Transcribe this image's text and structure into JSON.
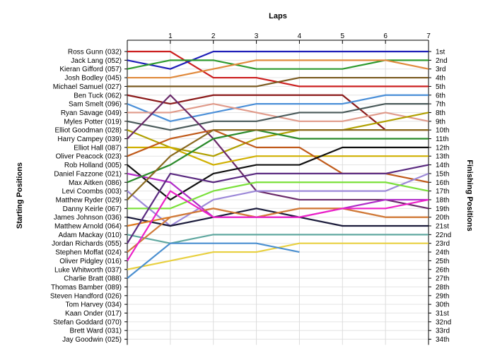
{
  "chart_data": {
    "type": "line",
    "title": "",
    "xlabel": "Laps",
    "ylabel_left": "Starting Positions",
    "ylabel_right": "Finishing Positions",
    "laps": [
      1,
      2,
      3,
      4,
      5,
      6,
      7
    ],
    "xlim": [
      0,
      7
    ],
    "ylim": [
      1,
      34
    ],
    "grid": true,
    "finishing_labels": [
      "1st",
      "2nd",
      "3rd",
      "4th",
      "5th",
      "6th",
      "7th",
      "8th",
      "9th",
      "10th",
      "11th",
      "12th",
      "13th",
      "14th",
      "15th",
      "16th",
      "17th",
      "18th",
      "19th",
      "20th",
      "21st",
      "22nd",
      "23rd",
      "24th",
      "25th",
      "26th",
      "27th",
      "28th",
      "29th",
      "30th",
      "31st",
      "32nd",
      "33rd",
      "34th"
    ],
    "series": [
      {
        "name": "Ross Gunn (032)",
        "color": "#cc1f1f",
        "positions": [
          1,
          1,
          4,
          4,
          5,
          5,
          5,
          5
        ]
      },
      {
        "name": "Jack Lang (052)",
        "color": "#1f1fb8",
        "positions": [
          2,
          3,
          1,
          1,
          1,
          1,
          1,
          1
        ]
      },
      {
        "name": "Kieran Gifford (057)",
        "color": "#2e9a2e",
        "positions": [
          3,
          2,
          2,
          3,
          3,
          3,
          2,
          2
        ]
      },
      {
        "name": "Josh Bodley (045)",
        "color": "#e08a3c",
        "positions": [
          4,
          4,
          3,
          2,
          2,
          2,
          2,
          3
        ]
      },
      {
        "name": "Michael Samuel (027)",
        "color": "#7a5a20",
        "positions": [
          5,
          5,
          5,
          5,
          4,
          4,
          4,
          4
        ]
      },
      {
        "name": "Ben Tuck (062)",
        "color": "#8b1a1a",
        "positions": [
          6,
          7,
          6,
          6,
          6,
          6,
          10,
          10
        ]
      },
      {
        "name": "Sam Smelt (096)",
        "color": "#4a8fd8",
        "positions": [
          7,
          9,
          8,
          7,
          7,
          7,
          6,
          6
        ]
      },
      {
        "name": "Ryan Savage (049)",
        "color": "#e09a8a",
        "positions": [
          8,
          8,
          7,
          8,
          9,
          9,
          8,
          9
        ]
      },
      {
        "name": "Myles Potter (019)",
        "color": "#4a5a5a",
        "positions": [
          9,
          10,
          9,
          9,
          8,
          8,
          7,
          7
        ]
      },
      {
        "name": "Elliot Goodman (028)",
        "color": "#b0a000",
        "positions": [
          10,
          12,
          13,
          11,
          10,
          10,
          9,
          8
        ]
      },
      {
        "name": "Harry Campey (039)",
        "color": "#6a2a6a",
        "positions": [
          11,
          6,
          11,
          17,
          18,
          18,
          18,
          19
        ]
      },
      {
        "name": "Elliot Hall (087)",
        "color": "#d0b000",
        "positions": [
          12,
          12,
          14,
          13,
          13,
          13,
          13,
          13
        ]
      },
      {
        "name": "Oliver Peacock (023)",
        "color": "#c05a1a",
        "positions": [
          13,
          11,
          10,
          12,
          12,
          15,
          15,
          16
        ]
      },
      {
        "name": "Rob Holland (005)",
        "color": "#101010",
        "positions": [
          14,
          18,
          15,
          14,
          14,
          12,
          12,
          12
        ]
      },
      {
        "name": "Daniel Fazzone (021)",
        "color": "#b02ac8",
        "positions": [
          15,
          16,
          20,
          20,
          20,
          19,
          18,
          18
        ]
      },
      {
        "name": "Max Aitken (086)",
        "color": "#2a8a2a",
        "positions": [
          16,
          14,
          11,
          10,
          11,
          11,
          11,
          11
        ]
      },
      {
        "name": "Levi Coombs (003)",
        "color": "#9c88d8",
        "positions": [
          17,
          21,
          18,
          17,
          17,
          17,
          17,
          15
        ]
      },
      {
        "name": "Matthew Ryder (029)",
        "color": "#8a6a20",
        "positions": [
          18,
          13,
          10,
          10,
          10,
          10,
          10,
          10
        ]
      },
      {
        "name": "Danny Keirle (067)",
        "color": "#7ae03a",
        "positions": [
          19,
          19,
          17,
          16,
          16,
          16,
          16,
          17
        ]
      },
      {
        "name": "James Johnson (036)",
        "color": "#1a1a3a",
        "positions": [
          20,
          21,
          20,
          19,
          20,
          21,
          21,
          21
        ]
      },
      {
        "name": "Matthew Arnold (064)",
        "color": "#e07a20",
        "positions": [
          21,
          20,
          19,
          20,
          19,
          19,
          20,
          20
        ]
      },
      {
        "name": "Adam Mackay (010)",
        "color": "#60a8a0",
        "positions": [
          22,
          23,
          22,
          22,
          22,
          22,
          22,
          22
        ]
      },
      {
        "name": "Jordan Richards (055)",
        "color": "#5a2a80",
        "positions": [
          23,
          15,
          16,
          15,
          15,
          15,
          15,
          14
        ]
      },
      {
        "name": "Stephen Moffat (024)",
        "color": "#d07a3a",
        "positions": [
          24,
          20,
          19,
          20,
          19,
          19,
          20,
          20
        ]
      },
      {
        "name": "Oliver Pidgley (016)",
        "color": "#ec20c8",
        "positions": [
          25,
          17,
          20,
          20,
          20,
          19,
          19,
          18
        ]
      },
      {
        "name": "Luke Whitworth (037)",
        "color": "#e8d040",
        "positions": [
          26,
          25,
          24,
          24,
          23,
          23,
          23,
          23
        ]
      },
      {
        "name": "Charlie Bratt (088)",
        "color": "#4a8fd0",
        "positions": [
          27,
          23,
          23,
          23,
          24
        ]
      }
    ]
  }
}
